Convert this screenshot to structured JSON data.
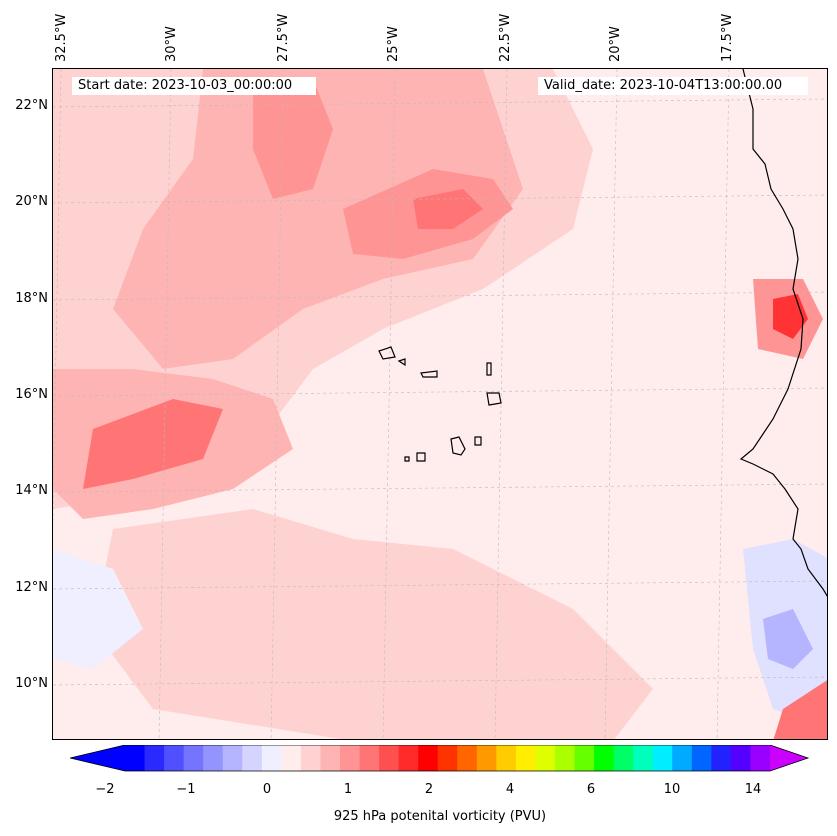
{
  "map": {
    "start_label": "Start date: 2023-10-03_00:00:00",
    "valid_label": "Valid_date: 2023-10-04T13:00:00.00",
    "lon_labels": [
      "32.5°W",
      "30°W",
      "27.5°W",
      "25°W",
      "22.5°W",
      "20°W",
      "17.5°W"
    ],
    "lat_labels": [
      "22°N",
      "20°N",
      "18°N",
      "16°N",
      "14°N",
      "12°N",
      "10°N"
    ],
    "lon_values": [
      -32.5,
      -30,
      -27.5,
      -25,
      -22.5,
      -20,
      -17.5
    ],
    "lat_values": [
      22,
      20,
      18,
      16,
      14,
      12,
      10
    ],
    "gridlines": true,
    "background_color": "#ffeded"
  },
  "colorbar": {
    "label": "925 hPa potenital vorticity (PVU)",
    "tick_labels": [
      "−2",
      "−1",
      "0",
      "1",
      "2",
      "4",
      "6",
      "10",
      "14"
    ],
    "colors": [
      "#0000ff",
      "#2a2aff",
      "#5050ff",
      "#7474ff",
      "#9494ff",
      "#b4b4ff",
      "#d4d4ff",
      "#efefff",
      "#ffeded",
      "#ffd2d2",
      "#ffb4b4",
      "#ff9494",
      "#ff7474",
      "#ff5050",
      "#ff2a2a",
      "#ff0000",
      "#ff3300",
      "#ff6600",
      "#ff9900",
      "#ffcc00",
      "#ffee00",
      "#ddff00",
      "#aaff00",
      "#66ff00",
      "#00ff00",
      "#00ff66",
      "#00ffbb",
      "#00eeff",
      "#00aaff",
      "#0066ff",
      "#2222ff",
      "#5500ff",
      "#9900ff"
    ],
    "extend_low_color": "#0000ff",
    "extend_high_color": "#cc00ff"
  }
}
